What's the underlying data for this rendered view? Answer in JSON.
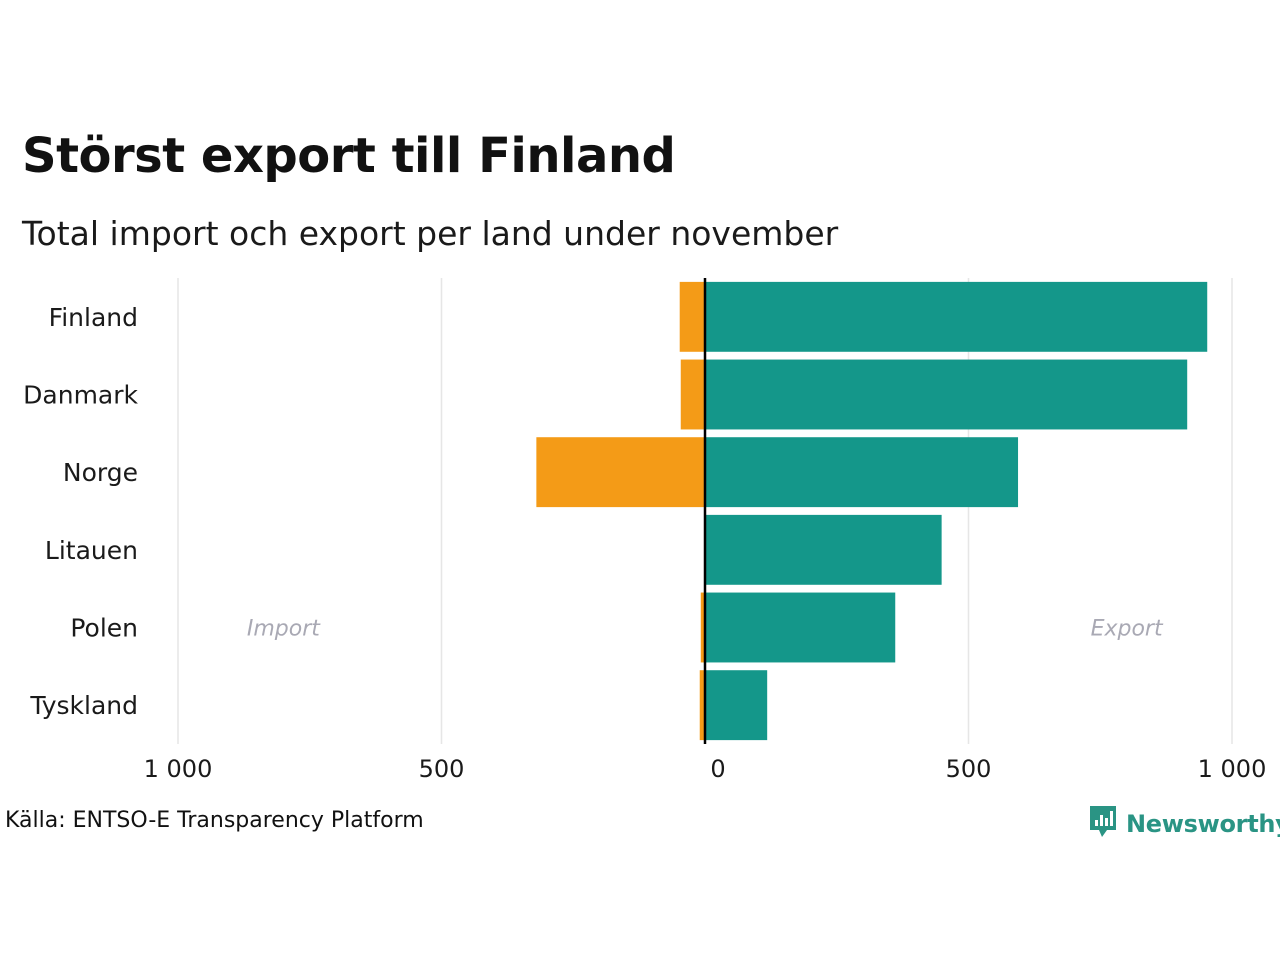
{
  "title": "Störst export till Finland",
  "subtitle": "Total import och export per land under november",
  "source": "Källa: ENTSO-E Transparency Platform",
  "brand": {
    "name": "Newsworthy",
    "icon": "newsworthy-logo-icon"
  },
  "colors": {
    "import": "#f49b17",
    "export": "#14978a",
    "grid": "#e6e6e6",
    "zero_line": "#000000",
    "side_label": "#a9a9b4"
  },
  "chart_data": {
    "type": "bar",
    "orientation": "horizontal",
    "title": "Störst export till Finland",
    "subtitle": "Total import och export per land under november",
    "categories": [
      "Finland",
      "Danmark",
      "Norge",
      "Litauen",
      "Polen",
      "Tyskland"
    ],
    "series": [
      {
        "name": "Import",
        "values": [
          48,
          46,
          320,
          0,
          8,
          10
        ]
      },
      {
        "name": "Export",
        "values": [
          953,
          915,
          594,
          449,
          361,
          118
        ]
      }
    ],
    "xlim": [
      -1000,
      1000
    ],
    "ticks": [
      -1000,
      -500,
      0,
      500,
      1000
    ],
    "tick_labels": [
      "1 000",
      "500",
      "0",
      "500",
      "1 000"
    ],
    "side_labels": {
      "import": "Import",
      "export": "Export"
    },
    "grid": true,
    "legend": "none"
  }
}
